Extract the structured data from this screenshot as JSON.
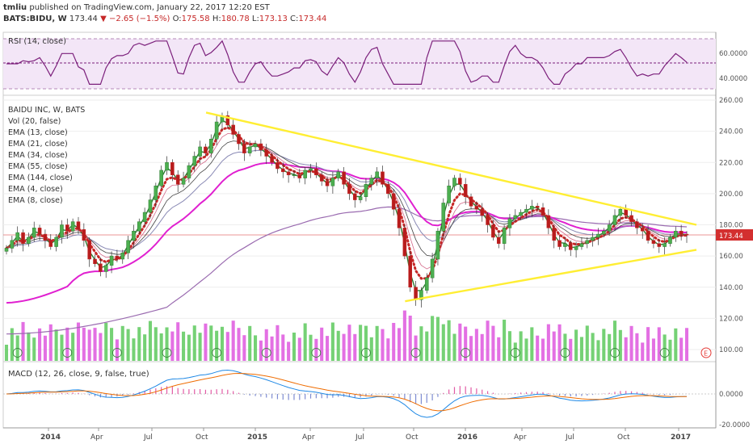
{
  "header": {
    "user": "tmliu",
    "published": "published on TradingView.com, January 22, 2017 12:20 EST",
    "symbol": "BATS:BIDU, W",
    "last": "173.44",
    "change": "−2.65 (−1.5%)",
    "o_label": "O:",
    "o_val": "175.58",
    "h_label": "H:",
    "h_val": "180.78",
    "l_label": "L:",
    "l_val": "173.13",
    "c_label": "C:",
    "c_val": "173.44"
  },
  "rsi": {
    "label": "RSI (14, close)",
    "ticks": [
      "60.0000",
      "40.0000"
    ]
  },
  "legend": [
    "BAIDU INC, W, BATS",
    "Vol (20, false)",
    "EMA (13, close)",
    "EMA (21, close)",
    "EMA (34, close)",
    "EMA (55, close)",
    "EMA (144, close)",
    "EMA (4, close)",
    "EMA (8, close)"
  ],
  "price_axis": [
    "260.00",
    "240.00",
    "220.00",
    "200.00",
    "180.00",
    "160.00",
    "140.00",
    "120.00",
    "100.00"
  ],
  "last_price_tag": "173.44",
  "macd": {
    "label": "MACD (12, 26, close, 9, false, true)",
    "ticks": [
      "0.0000",
      "-20.0000"
    ]
  },
  "x_axis": [
    {
      "t": "2014",
      "bold": true
    },
    {
      "t": "Apr",
      "bold": false
    },
    {
      "t": "Jul",
      "bold": false
    },
    {
      "t": "Oct",
      "bold": false
    },
    {
      "t": "2015",
      "bold": true
    },
    {
      "t": "Apr",
      "bold": false
    },
    {
      "t": "Jul",
      "bold": false
    },
    {
      "t": "Oct",
      "bold": false
    },
    {
      "t": "2016",
      "bold": true
    },
    {
      "t": "Apr",
      "bold": false
    },
    {
      "t": "Jul",
      "bold": false
    },
    {
      "t": "Oct",
      "bold": false
    },
    {
      "t": "2017",
      "bold": true
    }
  ],
  "colors": {
    "up": "#2e7d32",
    "down": "#c62828",
    "rsi": "#7b1f7b",
    "rsi_band": "#f3e6f7",
    "trend": "#ffee33",
    "ema_dots": "#c62828",
    "ema55": "#e020d0",
    "ema144": "#9a6bb0",
    "macd": "#1e88e5",
    "signal": "#ef6c00"
  },
  "chart_data": {
    "type": "candlestick",
    "title": "BAIDU INC, W, BATS",
    "ylim": [
      90,
      265
    ],
    "x_range": [
      "2013-12",
      "2017-02"
    ],
    "closes": [
      165,
      170,
      175,
      168,
      172,
      178,
      174,
      170,
      166,
      172,
      180,
      176,
      182,
      177,
      170,
      158,
      155,
      150,
      154,
      160,
      158,
      162,
      170,
      176,
      182,
      188,
      196,
      205,
      215,
      220,
      212,
      206,
      210,
      218,
      224,
      230,
      226,
      235,
      246,
      250,
      244,
      238,
      232,
      226,
      230,
      232,
      228,
      224,
      220,
      216,
      214,
      212,
      212,
      210,
      215,
      216,
      212,
      208,
      205,
      210,
      214,
      206,
      200,
      196,
      198,
      206,
      210,
      214,
      206,
      200,
      190,
      178,
      160,
      140,
      132,
      138,
      146,
      158,
      176,
      194,
      205,
      210,
      206,
      198,
      192,
      190,
      186,
      180,
      172,
      168,
      178,
      184,
      186,
      188,
      190,
      192,
      191,
      186,
      178,
      170,
      166,
      168,
      164,
      166,
      168,
      170,
      172,
      174,
      176,
      180,
      186,
      190,
      186,
      182,
      178,
      176,
      170,
      168,
      166,
      168,
      172,
      176,
      174,
      173.44
    ],
    "trendlines": [
      {
        "name": "upper",
        "from": [
          "2014-11",
          252
        ],
        "to": [
          "2017-02",
          180
        ]
      },
      {
        "name": "lower",
        "from": [
          "2015-10",
          131
        ],
        "to": [
          "2017-02",
          164
        ]
      }
    ]
  }
}
